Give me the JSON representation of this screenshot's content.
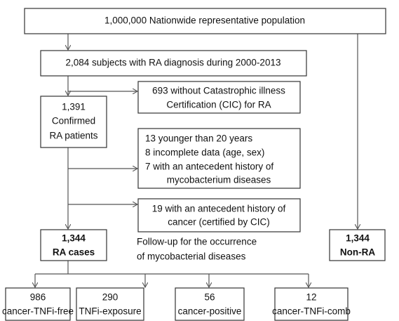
{
  "nodes": [
    {
      "lines": [
        "1,000,000 Nationwide representative population"
      ]
    },
    {
      "lines": [
        "2,084 subjects with RA diagnosis during 2000-2013"
      ]
    },
    {
      "lines": [
        "693 without Catastrophic illness",
        "Certification (CIC) for RA"
      ]
    },
    {
      "lines": [
        "1,391",
        "Confirmed",
        "RA patients"
      ]
    },
    {
      "lines": [
        "13 younger than 20 years",
        "8 incomplete data (age, sex)",
        "7 with an antecedent history of",
        "mycobacterium diseases"
      ]
    },
    {
      "lines": [
        "19 with an antecedent history of",
        "cancer (certified by CIC)"
      ]
    },
    {
      "lines": [
        "1,344",
        "RA cases"
      ]
    },
    {
      "lines": [
        "1,344",
        "Non-RA"
      ]
    },
    {
      "lines": [
        "986",
        "cancer-TNFi-free"
      ]
    },
    {
      "lines": [
        "290",
        "TNFi-exposure"
      ]
    },
    {
      "lines": [
        "56",
        "cancer-positive"
      ]
    },
    {
      "lines": [
        "12",
        "cancer-TNFi-comb"
      ]
    }
  ],
  "annotation": {
    "lines": [
      "Follow-up for the occurrence",
      "of mycobacterial diseases"
    ]
  }
}
